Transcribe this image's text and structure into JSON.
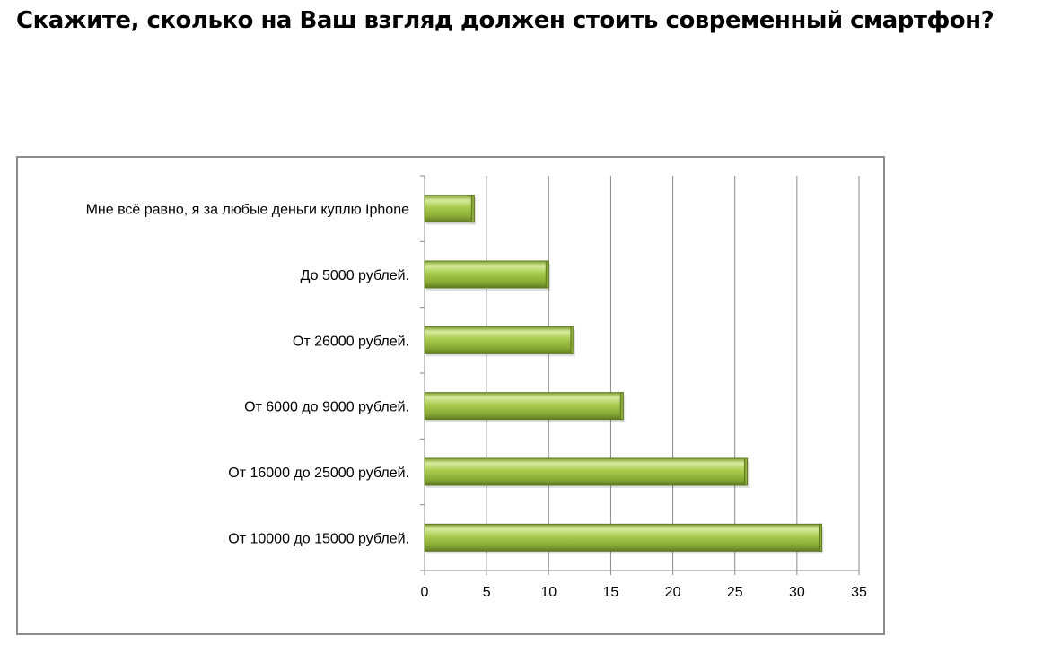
{
  "heading": "Скажите, сколько на Ваш взгляд должен стоить современный смартфон?",
  "chart_data": {
    "type": "bar",
    "orientation": "horizontal",
    "title": "",
    "xlabel": "",
    "ylabel": "",
    "categories": [
      "От 10000 до 15000 рублей.",
      "От 16000 до 25000 рублей.",
      "От 6000 до 9000 рублей.",
      "От 26000 рублей.",
      "До 5000 рублей.",
      "Мне всё равно, я за любые деньги куплю Iphone"
    ],
    "values": [
      32,
      26,
      16,
      12,
      10,
      4
    ],
    "xlim": [
      0,
      35
    ],
    "xticks": [
      "0",
      "5",
      "10",
      "15",
      "20",
      "25",
      "30",
      "35"
    ],
    "grid": "vertical",
    "legend": "none",
    "bar_color": "#8fb43a",
    "bar_highlight": "#d8ea9e",
    "bar_shadow": "#5f7a22"
  }
}
